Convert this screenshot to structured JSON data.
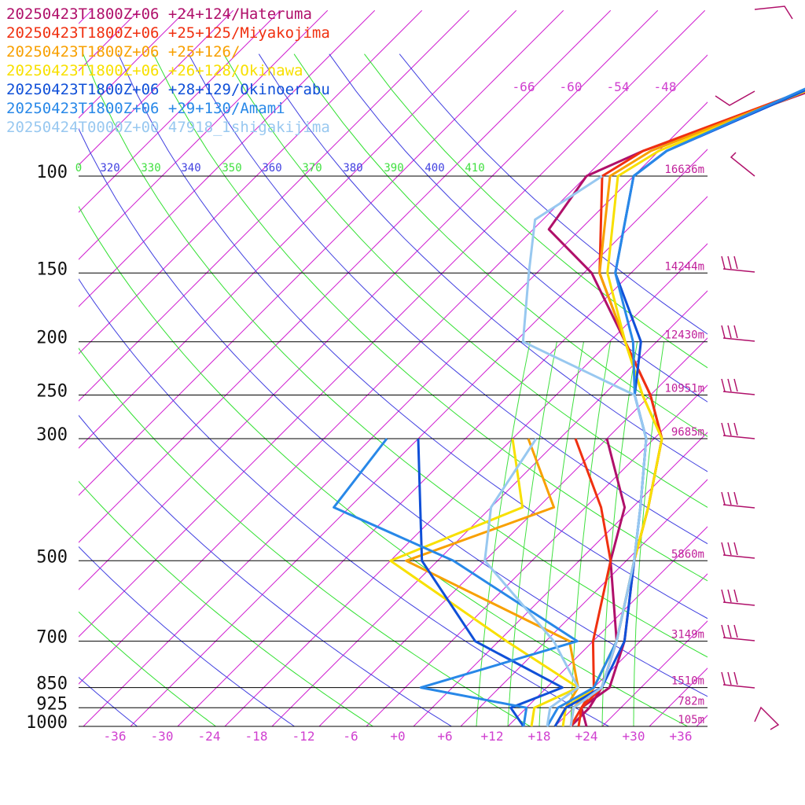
{
  "chart_data": {
    "type": "line",
    "title": "",
    "xlabel": "",
    "ylabel": "",
    "x_ticks": [
      "-36",
      "-30",
      "-24",
      "-18",
      "-12",
      "-6",
      "+0",
      "+6",
      "+12",
      "+18",
      "+24",
      "+30",
      "+36"
    ],
    "x_tick_values": [
      -36,
      -30,
      -24,
      -18,
      -12,
      -6,
      0,
      6,
      12,
      18,
      24,
      30,
      36
    ],
    "pressure_levels": [
      {
        "label": "100",
        "p": 100,
        "height": "16636m"
      },
      {
        "label": "150",
        "p": 150,
        "height": "14244m"
      },
      {
        "label": "200",
        "p": 200,
        "height": "12430m"
      },
      {
        "label": "250",
        "p": 250,
        "height": "10951m"
      },
      {
        "label": "300",
        "p": 300,
        "height": "9685m"
      },
      {
        "label": "500",
        "p": 500,
        "height": "5860m"
      },
      {
        "label": "700",
        "p": 700,
        "height": "3149m"
      },
      {
        "label": "850",
        "p": 850,
        "height": "1510m"
      },
      {
        "label": "925",
        "p": 925,
        "height": "782m"
      },
      {
        "label": "1000",
        "p": 1000,
        "height": "105m"
      }
    ],
    "theta_labels": [
      "0",
      "320",
      "330",
      "340",
      "350",
      "360",
      "370",
      "380",
      "390",
      "400",
      "410"
    ],
    "mixing_labels": [
      "-66",
      "-60",
      "-54",
      "-48"
    ],
    "series": [
      {
        "name": "20250423T1800Z+06 +24+124/Hateruma",
        "color": "#b0106a",
        "temp": [
          [
            1000,
            24
          ],
          [
            925,
            21
          ],
          [
            850,
            22
          ],
          [
            700,
            18
          ],
          [
            500,
            9
          ],
          [
            400,
            4
          ],
          [
            300,
            -3
          ],
          [
            250,
            -10
          ],
          [
            200,
            -20
          ],
          [
            150,
            -33
          ],
          [
            125,
            -44
          ],
          [
            100,
            -46
          ],
          [
            90,
            -42
          ],
          [
            50,
            -10
          ]
        ],
        "dew": [
          [
            1000,
            22
          ],
          [
            925,
            22
          ],
          [
            850,
            21
          ],
          [
            700,
            17
          ],
          [
            500,
            6
          ],
          [
            400,
            1
          ],
          [
            300,
            -10
          ]
        ]
      },
      {
        "name": "20250423T1800Z+06 +25+125/Miyakojima",
        "color": "#f03010",
        "temp": [
          [
            1000,
            23
          ],
          [
            925,
            21
          ],
          [
            850,
            21
          ],
          [
            700,
            17
          ],
          [
            500,
            9
          ],
          [
            400,
            4
          ],
          [
            300,
            -3
          ],
          [
            250,
            -10
          ],
          [
            200,
            -20
          ],
          [
            150,
            -32
          ],
          [
            100,
            -44
          ],
          [
            90,
            -42
          ],
          [
            50,
            -12
          ]
        ],
        "dew": [
          [
            1000,
            22
          ],
          [
            925,
            21
          ],
          [
            850,
            20
          ],
          [
            700,
            14
          ],
          [
            500,
            6
          ],
          [
            400,
            -2
          ],
          [
            300,
            -14
          ]
        ]
      },
      {
        "name": "20250423T1800Z+06 +25+126/",
        "color": "#f8a000",
        "temp": [
          [
            1000,
            22
          ],
          [
            925,
            20
          ],
          [
            850,
            20
          ],
          [
            700,
            17
          ],
          [
            500,
            9
          ],
          [
            400,
            4
          ],
          [
            300,
            -3
          ],
          [
            250,
            -11
          ],
          [
            200,
            -20
          ],
          [
            150,
            -32
          ],
          [
            100,
            -43
          ],
          [
            90,
            -41
          ],
          [
            50,
            -13
          ]
        ],
        "dew": [
          [
            1000,
            20
          ],
          [
            925,
            19
          ],
          [
            850,
            18
          ],
          [
            700,
            11
          ],
          [
            500,
            -20
          ],
          [
            400,
            -8
          ],
          [
            300,
            -20
          ]
        ]
      },
      {
        "name": "20250423T1800Z+06 +26+128/Okinawa",
        "color": "#f8e000",
        "temp": [
          [
            1000,
            21
          ],
          [
            925,
            19
          ],
          [
            850,
            20
          ],
          [
            700,
            17
          ],
          [
            500,
            9
          ],
          [
            400,
            4
          ],
          [
            300,
            -3
          ],
          [
            250,
            -11
          ],
          [
            200,
            -20
          ],
          [
            150,
            -31
          ],
          [
            100,
            -42
          ],
          [
            90,
            -40
          ],
          [
            50,
            -14
          ]
        ],
        "dew": [
          [
            1000,
            17
          ],
          [
            925,
            15
          ],
          [
            850,
            18
          ],
          [
            700,
            3
          ],
          [
            500,
            -22
          ],
          [
            400,
            -12
          ],
          [
            300,
            -22
          ]
        ]
      },
      {
        "name": "20250423T1800Z+06 +28+129/Okinoerabu",
        "color": "#1050d8",
        "temp": [
          [
            1000,
            20
          ],
          [
            925,
            19
          ],
          [
            850,
            21
          ],
          [
            700,
            18
          ],
          [
            500,
            9
          ],
          [
            400,
            3
          ],
          [
            300,
            -5
          ],
          [
            250,
            -12
          ],
          [
            200,
            -18
          ],
          [
            150,
            -30
          ],
          [
            100,
            -40
          ],
          [
            90,
            -39
          ],
          [
            50,
            -16
          ]
        ],
        "dew": [
          [
            1000,
            16
          ],
          [
            925,
            12
          ],
          [
            850,
            16
          ],
          [
            700,
            -1
          ],
          [
            500,
            -18
          ],
          [
            400,
            -25
          ],
          [
            300,
            -34
          ]
        ]
      },
      {
        "name": "20250423T1800Z+06 +29+130/Amami",
        "color": "#2888e8",
        "temp": [
          [
            1000,
            19
          ],
          [
            925,
            18
          ],
          [
            850,
            20
          ],
          [
            700,
            17
          ],
          [
            500,
            9
          ],
          [
            400,
            3
          ],
          [
            300,
            -5
          ],
          [
            250,
            -12
          ],
          [
            200,
            -19
          ],
          [
            150,
            -30
          ],
          [
            100,
            -40
          ],
          [
            90,
            -39
          ],
          [
            50,
            -17
          ]
        ],
        "dew": [
          [
            1000,
            16
          ],
          [
            925,
            14
          ],
          [
            850,
            -2
          ],
          [
            700,
            12
          ],
          [
            500,
            -14
          ],
          [
            400,
            -36
          ],
          [
            300,
            -38
          ]
        ]
      },
      {
        "name": "20250424T0000Z+00 47918_Ishigakijima",
        "color": "#98c8f0",
        "temp": [
          [
            1000,
            22
          ],
          [
            925,
            20
          ],
          [
            850,
            21
          ],
          [
            700,
            17
          ],
          [
            500,
            9
          ],
          [
            400,
            3
          ],
          [
            300,
            -5
          ],
          [
            250,
            -12
          ],
          [
            200,
            -33
          ],
          [
            150,
            -41
          ],
          [
            120,
            -47
          ],
          [
            100,
            -44
          ]
        ],
        "dew": [
          [
            1000,
            19
          ],
          [
            925,
            17
          ],
          [
            850,
            18
          ],
          [
            700,
            9
          ],
          [
            500,
            -10
          ],
          [
            400,
            -16
          ],
          [
            300,
            -19
          ]
        ]
      }
    ],
    "grid": true,
    "legend_position": "top-left"
  }
}
